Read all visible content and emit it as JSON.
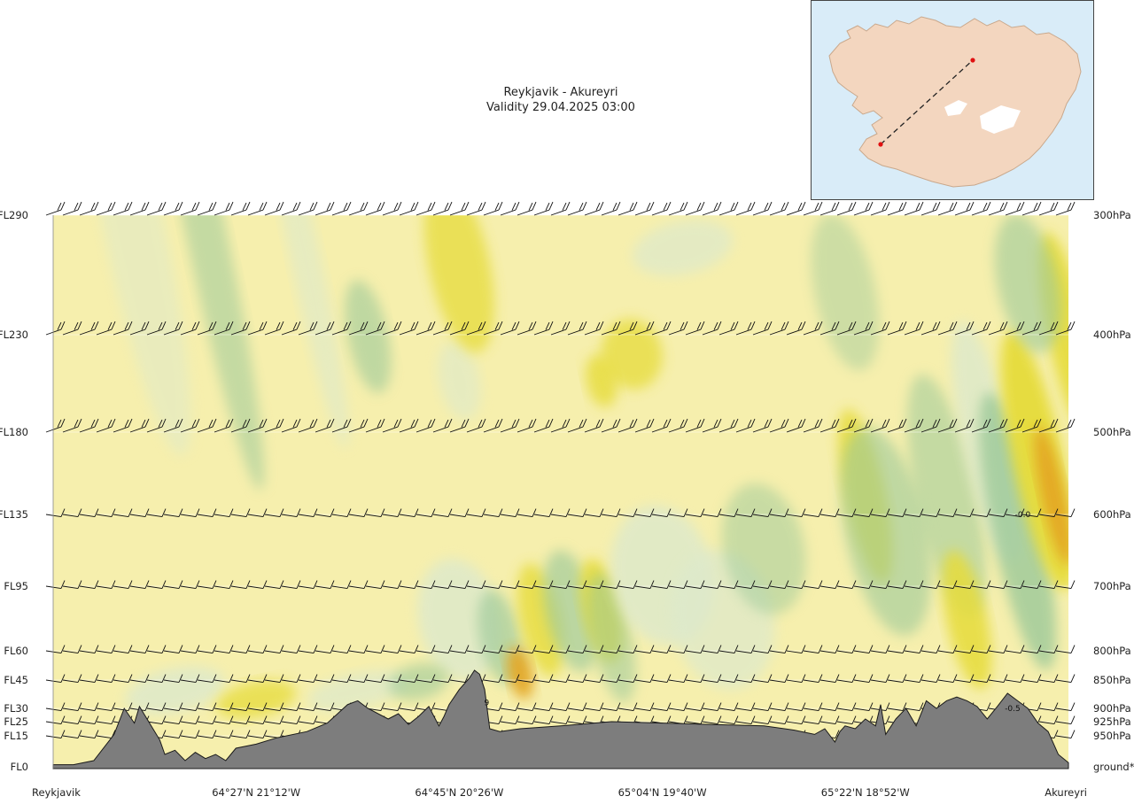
{
  "title": "Reykjavik - Akureyri",
  "validity": "Validity 29.04.2025 03:00",
  "colors": {
    "plot_background": "#f6efad",
    "terrain": "#7d7d7d",
    "terrain_outline": "#1a1a1a",
    "map_sea": "#d9ecf8",
    "map_land": "#f3d6bf",
    "route_marker": "#e01010",
    "band_colors": [
      "#dde9cc",
      "#9cc99a",
      "#e6dc3a",
      "#e3a521"
    ]
  },
  "map": {
    "region": "Iceland",
    "route_start": "Reykjavik",
    "route_end": "Akureyri"
  },
  "chart_data": {
    "type": "heatmap",
    "subtype": "vertical cross-section with wind barbs",
    "title": "Reykjavik - Akureyri",
    "subtitle": "Validity 29.04.2025 03:00",
    "y_levels": [
      {
        "fl": "FL290",
        "fl_value": 290,
        "pressure": "300hPa"
      },
      {
        "fl": "FL230",
        "fl_value": 230,
        "pressure": "400hPa"
      },
      {
        "fl": "FL180",
        "fl_value": 180,
        "pressure": "500hPa"
      },
      {
        "fl": "FL135",
        "fl_value": 135,
        "pressure": "600hPa"
      },
      {
        "fl": "FL95",
        "fl_value": 95,
        "pressure": "700hPa"
      },
      {
        "fl": "FL60",
        "fl_value": 60,
        "pressure": "800hPa"
      },
      {
        "fl": "FL45",
        "fl_value": 45,
        "pressure": "850hPa"
      },
      {
        "fl": "FL30",
        "fl_value": 30,
        "pressure": "900hPa"
      },
      {
        "fl": "FL25",
        "fl_value": 25,
        "pressure": "925hPa"
      },
      {
        "fl": "FL15",
        "fl_value": 15,
        "pressure": "950hPa"
      },
      {
        "fl": "FL0",
        "fl_value": 0,
        "pressure": "ground*"
      }
    ],
    "x_labels": [
      {
        "text": "Reykjavik",
        "frac": 0.0
      },
      {
        "text": "64°27'N 21°12'W",
        "frac": 0.2
      },
      {
        "text": "64°45'N 20°26'W",
        "frac": 0.4
      },
      {
        "text": "65°04'N 19°40'W",
        "frac": 0.6
      },
      {
        "text": "65°22'N 18°52'W",
        "frac": 0.8
      },
      {
        "text": "Akureyri",
        "frac": 1.0
      }
    ],
    "contour_labels": [
      {
        "text": "-0.0",
        "frac": 0.955,
        "fl": 135
      },
      {
        "text": "-0.5",
        "frac": 0.945,
        "fl": 30
      },
      {
        "text": "9",
        "frac": 0.427,
        "fl": 33
      }
    ],
    "terrain_fl": [
      [
        0.0,
        1
      ],
      [
        0.02,
        1
      ],
      [
        0.04,
        3
      ],
      [
        0.06,
        16
      ],
      [
        0.07,
        30
      ],
      [
        0.08,
        24
      ],
      [
        0.085,
        31
      ],
      [
        0.1,
        18
      ],
      [
        0.105,
        13
      ],
      [
        0.11,
        6
      ],
      [
        0.12,
        8
      ],
      [
        0.13,
        3
      ],
      [
        0.14,
        7
      ],
      [
        0.15,
        4
      ],
      [
        0.16,
        6
      ],
      [
        0.17,
        3
      ],
      [
        0.18,
        9
      ],
      [
        0.2,
        11
      ],
      [
        0.22,
        14
      ],
      [
        0.25,
        18
      ],
      [
        0.27,
        24
      ],
      [
        0.29,
        32
      ],
      [
        0.3,
        34
      ],
      [
        0.31,
        30
      ],
      [
        0.33,
        26
      ],
      [
        0.34,
        28
      ],
      [
        0.35,
        23
      ],
      [
        0.36,
        27
      ],
      [
        0.37,
        31
      ],
      [
        0.38,
        22
      ],
      [
        0.385,
        27
      ],
      [
        0.39,
        32
      ],
      [
        0.4,
        40
      ],
      [
        0.41,
        46
      ],
      [
        0.415,
        50
      ],
      [
        0.42,
        48
      ],
      [
        0.425,
        40
      ],
      [
        0.43,
        20
      ],
      [
        0.44,
        18
      ],
      [
        0.46,
        20
      ],
      [
        0.5,
        22
      ],
      [
        0.55,
        25
      ],
      [
        0.6,
        24
      ],
      [
        0.65,
        23
      ],
      [
        0.7,
        22
      ],
      [
        0.73,
        19
      ],
      [
        0.75,
        16
      ],
      [
        0.76,
        20
      ],
      [
        0.77,
        12
      ],
      [
        0.775,
        18
      ],
      [
        0.78,
        22
      ],
      [
        0.79,
        20
      ],
      [
        0.8,
        26
      ],
      [
        0.81,
        22
      ],
      [
        0.815,
        32
      ],
      [
        0.82,
        16
      ],
      [
        0.83,
        26
      ],
      [
        0.84,
        30
      ],
      [
        0.85,
        22
      ],
      [
        0.86,
        34
      ],
      [
        0.87,
        30
      ],
      [
        0.88,
        34
      ],
      [
        0.89,
        36
      ],
      [
        0.9,
        34
      ],
      [
        0.91,
        31
      ],
      [
        0.92,
        26
      ],
      [
        0.93,
        31
      ],
      [
        0.94,
        38
      ],
      [
        0.95,
        34
      ],
      [
        0.96,
        30
      ],
      [
        0.97,
        24
      ],
      [
        0.98,
        18
      ],
      [
        0.99,
        6
      ],
      [
        1.0,
        2
      ]
    ]
  }
}
